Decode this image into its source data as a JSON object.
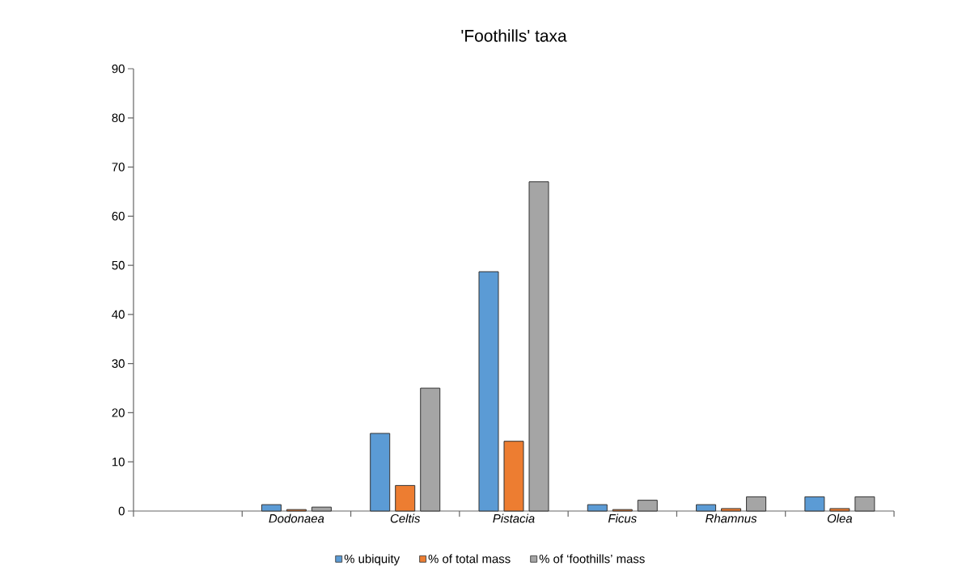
{
  "chart_data": {
    "type": "bar",
    "title": "'Foothills' taxa",
    "categories": [
      null,
      "Dodonaea",
      "Celtis",
      "Pistacia",
      "Ficus",
      "Rhamnus",
      "Olea"
    ],
    "series": [
      {
        "name": "% ubiquity",
        "color": "#5b9bd5",
        "values": [
          null,
          1.3,
          15.8,
          48.7,
          1.3,
          1.3,
          2.9
        ]
      },
      {
        "name": "% of total mass",
        "color": "#ed7d31",
        "values": [
          null,
          0.3,
          5.2,
          14.2,
          0.3,
          0.5,
          0.5
        ]
      },
      {
        "name": "% of ‘foothills’ mass",
        "color": "#a5a5a5",
        "values": [
          null,
          0.8,
          25,
          67,
          2.2,
          2.9,
          2.9
        ]
      }
    ],
    "ylim": [
      0,
      90
    ],
    "yticks": [
      0,
      10,
      20,
      30,
      40,
      50,
      60,
      70,
      80,
      90
    ],
    "legend": "bottom"
  }
}
